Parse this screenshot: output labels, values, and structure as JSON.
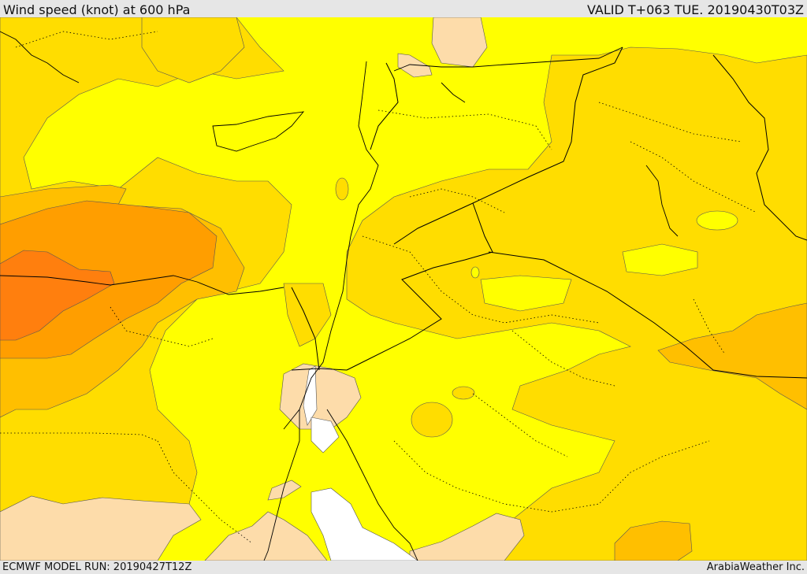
{
  "header": {
    "title": "Wind speed (knot) at 600 hPa",
    "valid_time": "VALID T+063 TUE. 20190430T03Z"
  },
  "footer": {
    "model_run": "ECMWF MODEL RUN: 20190427T12Z",
    "brand": "ArabiaWeather Inc."
  },
  "map": {
    "field": "wind speed",
    "level": "600 hPa",
    "colors": {
      "white": "#ffffff",
      "light_peach": "#fddcaa",
      "yellow": "#ffff00",
      "gold": "#ffdd00",
      "amber": "#ffbf00",
      "orange": "#ff9e00",
      "deep_orange": "#ff7f0e",
      "coastline": "#000000",
      "border": "#000000"
    }
  }
}
